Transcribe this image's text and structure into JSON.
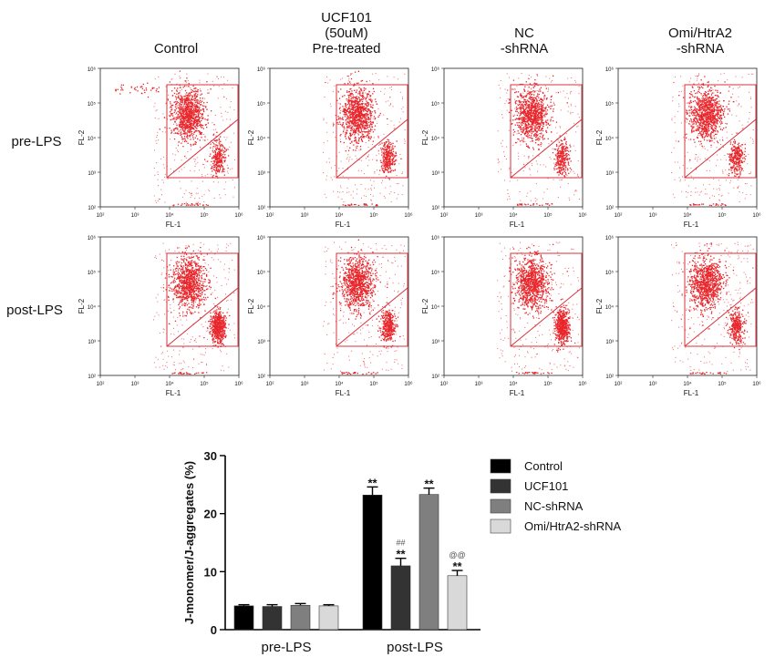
{
  "column_headers": [
    [
      "Control"
    ],
    [
      "UCF101",
      "(50uM)",
      "Pre-treated"
    ],
    [
      "NC",
      "-shRNA"
    ],
    [
      "Omi/HtrA2",
      "-shRNA"
    ]
  ],
  "row_labels": [
    "pre-LPS",
    "post-LPS"
  ],
  "flow_panels": {
    "x_axis_label": "FL-1",
    "y_axis_label": "FL-2",
    "tick_labels": [
      "10²",
      "10³",
      "10⁴",
      "10⁵",
      "10⁶"
    ],
    "dot_color": "#e8262b",
    "gate_color": "#d9303a",
    "cluster_intensity": [
      [
        0.35,
        0.4,
        0.35,
        0.4
      ],
      [
        1.0,
        0.55,
        1.0,
        0.45
      ]
    ]
  },
  "chart_data": {
    "type": "bar",
    "ylabel": "J-monomer/J-aggregates (%)",
    "ylim": [
      0,
      30
    ],
    "yticks": [
      0,
      10,
      20,
      30
    ],
    "categories": [
      "pre-LPS",
      "post-LPS"
    ],
    "series": [
      {
        "name": "Control",
        "color": "#000000",
        "values": [
          4.1,
          23.2
        ],
        "errors": [
          0.2,
          1.4
        ],
        "annotations": [
          "",
          "**"
        ]
      },
      {
        "name": "UCF101",
        "color": "#333333",
        "values": [
          4.0,
          11.0
        ],
        "errors": [
          0.3,
          1.3
        ],
        "annotations": [
          "",
          "##\n**"
        ]
      },
      {
        "name": "NC-shRNA",
        "color": "#7f7f7f",
        "values": [
          4.2,
          23.3
        ],
        "errors": [
          0.3,
          1.1
        ],
        "annotations": [
          "",
          "**"
        ]
      },
      {
        "name": "Omi/HtrA2-shRNA",
        "color": "#d9d9d9",
        "values": [
          4.1,
          9.3
        ],
        "errors": [
          0.2,
          0.9
        ],
        "annotations": [
          "",
          "@@\n**"
        ]
      }
    ],
    "legend_position": "right"
  }
}
